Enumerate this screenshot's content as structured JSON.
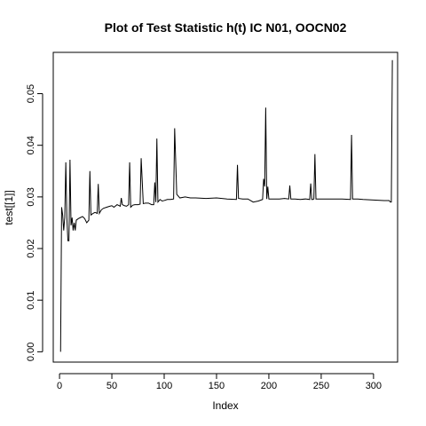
{
  "chart_data": {
    "type": "line",
    "title": "Plot of Test Statistic h(t) IC N01, OOCN02",
    "xlabel": "Index",
    "ylabel": "test[[1]]",
    "xlim": [
      -6,
      323
    ],
    "ylim": [
      -0.002,
      0.058
    ],
    "xticks": [
      "0",
      "50",
      "100",
      "150",
      "200",
      "250",
      "300"
    ],
    "yticks": [
      "0.00",
      "0.01",
      "0.02",
      "0.03",
      "0.04",
      "0.05"
    ],
    "grid": false,
    "line_color": "#000000",
    "series": [
      {
        "x": [
          1,
          2,
          3,
          4,
          5,
          6,
          7,
          8,
          9,
          10,
          11,
          12,
          13,
          14,
          15,
          16,
          18,
          20,
          22,
          24,
          26,
          28,
          29,
          30,
          32,
          34,
          36,
          37,
          38,
          40,
          42,
          45,
          48,
          50,
          52,
          55,
          58,
          59,
          60,
          62,
          64,
          66,
          67,
          68,
          70,
          72,
          75,
          77,
          78,
          80,
          82,
          85,
          88,
          90,
          91,
          92,
          93,
          94,
          96,
          98,
          100,
          103,
          106,
          109,
          110,
          112,
          115,
          120,
          125,
          130,
          140,
          150,
          160,
          169,
          170,
          171,
          175,
          180,
          185,
          190,
          194,
          195,
          196,
          197,
          198,
          199,
          200,
          205,
          210,
          215,
          219,
          220,
          221,
          225,
          230,
          235,
          239,
          240,
          241,
          242,
          243,
          244,
          245,
          250,
          260,
          270,
          278,
          279,
          280,
          281,
          285,
          290,
          300,
          310,
          315,
          316,
          317,
          318
        ],
        "values": [
          0.0,
          0.028,
          0.0265,
          0.0235,
          0.026,
          0.0367,
          0.026,
          0.0215,
          0.0215,
          0.0372,
          0.0245,
          0.026,
          0.0235,
          0.025,
          0.0235,
          0.0255,
          0.0258,
          0.026,
          0.0262,
          0.0258,
          0.025,
          0.0255,
          0.035,
          0.0265,
          0.0268,
          0.027,
          0.0268,
          0.0325,
          0.0268,
          0.0275,
          0.0278,
          0.028,
          0.0282,
          0.0283,
          0.028,
          0.0285,
          0.0282,
          0.0298,
          0.0285,
          0.0283,
          0.0282,
          0.0285,
          0.0367,
          0.028,
          0.0284,
          0.0285,
          0.0285,
          0.0286,
          0.0375,
          0.0287,
          0.0288,
          0.0288,
          0.0285,
          0.0285,
          0.0328,
          0.029,
          0.0413,
          0.029,
          0.0295,
          0.0292,
          0.0293,
          0.0295,
          0.0295,
          0.0296,
          0.0433,
          0.0305,
          0.0298,
          0.03,
          0.0298,
          0.0298,
          0.0297,
          0.0298,
          0.0296,
          0.0295,
          0.0362,
          0.0297,
          0.0296,
          0.0296,
          0.029,
          0.0292,
          0.0295,
          0.0335,
          0.032,
          0.0473,
          0.0296,
          0.032,
          0.0296,
          0.0296,
          0.0296,
          0.0297,
          0.0296,
          0.0322,
          0.0296,
          0.0296,
          0.0295,
          0.0296,
          0.0295,
          0.0326,
          0.0295,
          0.0295,
          0.0296,
          0.0383,
          0.0296,
          0.0296,
          0.0296,
          0.0296,
          0.0295,
          0.042,
          0.0296,
          0.0296,
          0.0296,
          0.0295,
          0.0294,
          0.0293,
          0.0293,
          0.029,
          0.029,
          0.0565
        ]
      }
    ]
  }
}
